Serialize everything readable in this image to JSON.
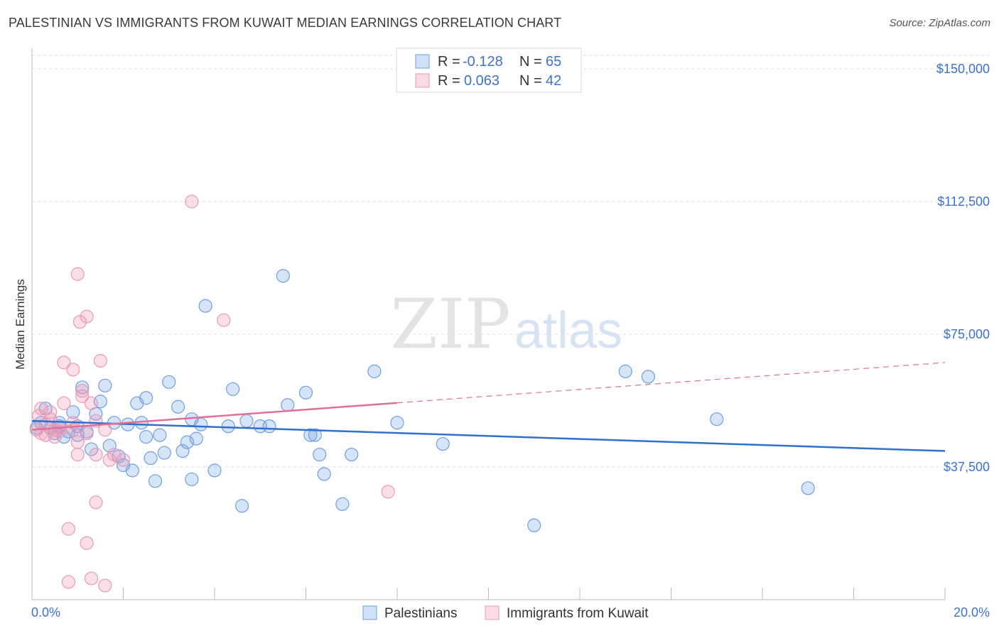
{
  "header": {
    "title": "PALESTINIAN VS IMMIGRANTS FROM KUWAIT MEDIAN EARNINGS CORRELATION CHART",
    "source": "Source: ZipAtlas.com"
  },
  "watermark": {
    "zip": "ZIP",
    "atlas": "atlas"
  },
  "colors": {
    "blue_fill": "rgba(120,165,230,0.30)",
    "blue_stroke": "#6f9fe0",
    "blue_line": "#2f6fce",
    "pink_fill": "rgba(240,150,180,0.30)",
    "pink_stroke": "#e89ab5",
    "pink_line": "#e07098",
    "axis_label": "#3d72c8",
    "grid": "#dcdcdc"
  },
  "chart_data": {
    "type": "scatter",
    "ylabel": "Median Earnings",
    "xlim": [
      0,
      20
    ],
    "ylim": [
      0,
      150000
    ],
    "y_ticks": [
      {
        "value": 37500,
        "label": "$37,500"
      },
      {
        "value": 75000,
        "label": "$75,000"
      },
      {
        "value": 112500,
        "label": "$112,500"
      },
      {
        "value": 150000,
        "label": "$150,000"
      }
    ],
    "x_tick_labels": {
      "min": "0.0%",
      "max": "20.0%"
    },
    "legend_stats": [
      {
        "r_label": "R =",
        "r_value": "-0.128",
        "n_label": "N =",
        "n_value": "65"
      },
      {
        "r_label": "R =",
        "r_value": "0.063",
        "n_label": "N =",
        "n_value": "42"
      }
    ],
    "series": [
      {
        "name": "Palestinians",
        "color": "blue",
        "trend": {
          "x": [
            0,
            20
          ],
          "y": [
            50500,
            42000
          ],
          "dashed_from": null
        },
        "points": [
          [
            0.1,
            48500
          ],
          [
            0.2,
            50000
          ],
          [
            0.3,
            54000
          ],
          [
            0.4,
            48500
          ],
          [
            0.5,
            47000
          ],
          [
            0.6,
            50000
          ],
          [
            0.7,
            46000
          ],
          [
            0.8,
            47500
          ],
          [
            0.9,
            53000
          ],
          [
            1.0,
            46500
          ],
          [
            1.1,
            60000
          ],
          [
            1.2,
            47500
          ],
          [
            1.3,
            42500
          ],
          [
            1.4,
            52500
          ],
          [
            1.5,
            56000
          ],
          [
            1.6,
            60500
          ],
          [
            1.7,
            43500
          ],
          [
            1.8,
            50000
          ],
          [
            1.9,
            40500
          ],
          [
            2.0,
            38000
          ],
          [
            2.2,
            36500
          ],
          [
            2.3,
            55500
          ],
          [
            2.4,
            50000
          ],
          [
            2.5,
            57000
          ],
          [
            2.6,
            40000
          ],
          [
            2.7,
            33500
          ],
          [
            2.8,
            46500
          ],
          [
            2.9,
            41500
          ],
          [
            3.0,
            61500
          ],
          [
            3.2,
            54500
          ],
          [
            3.3,
            42000
          ],
          [
            3.4,
            44500
          ],
          [
            3.5,
            51000
          ],
          [
            3.5,
            34000
          ],
          [
            3.6,
            45500
          ],
          [
            3.8,
            83000
          ],
          [
            4.0,
            36500
          ],
          [
            4.3,
            49000
          ],
          [
            4.4,
            59500
          ],
          [
            4.6,
            26500
          ],
          [
            4.7,
            50500
          ],
          [
            5.0,
            49000
          ],
          [
            5.2,
            49000
          ],
          [
            5.5,
            91500
          ],
          [
            5.6,
            55000
          ],
          [
            6.0,
            58500
          ],
          [
            6.1,
            46500
          ],
          [
            6.2,
            46500
          ],
          [
            6.3,
            41000
          ],
          [
            6.4,
            35500
          ],
          [
            6.8,
            27000
          ],
          [
            7.0,
            41000
          ],
          [
            7.5,
            64500
          ],
          [
            8.0,
            50000
          ],
          [
            9.0,
            44000
          ],
          [
            11.0,
            21000
          ],
          [
            13.0,
            64500
          ],
          [
            13.5,
            63000
          ],
          [
            15.0,
            51000
          ],
          [
            17.0,
            31500
          ],
          [
            1.0,
            49000
          ],
          [
            2.1,
            49500
          ],
          [
            3.7,
            49500
          ],
          [
            0.6,
            49000
          ],
          [
            2.5,
            46000
          ]
        ]
      },
      {
        "name": "Immigrants from Kuwait",
        "color": "pink",
        "trend": {
          "x": [
            0,
            20
          ],
          "y": [
            48000,
            67000
          ],
          "dashed_from": 8.0
        },
        "points": [
          [
            0.1,
            48000
          ],
          [
            0.15,
            52000
          ],
          [
            0.2,
            54000
          ],
          [
            0.3,
            49500
          ],
          [
            0.3,
            46500
          ],
          [
            0.4,
            53000
          ],
          [
            0.5,
            48000
          ],
          [
            0.5,
            46000
          ],
          [
            0.6,
            47500
          ],
          [
            0.7,
            55500
          ],
          [
            0.7,
            67000
          ],
          [
            0.8,
            5000
          ],
          [
            0.8,
            20000
          ],
          [
            0.9,
            65000
          ],
          [
            0.9,
            48000
          ],
          [
            1.0,
            44500
          ],
          [
            1.0,
            41000
          ],
          [
            1.0,
            92000
          ],
          [
            1.1,
            59000
          ],
          [
            1.1,
            57500
          ],
          [
            1.05,
            78500
          ],
          [
            1.2,
            80000
          ],
          [
            1.2,
            16000
          ],
          [
            1.3,
            55500
          ],
          [
            1.3,
            6000
          ],
          [
            1.4,
            50500
          ],
          [
            1.4,
            41000
          ],
          [
            1.4,
            27500
          ],
          [
            1.5,
            67500
          ],
          [
            1.6,
            48000
          ],
          [
            1.6,
            4000
          ],
          [
            1.7,
            39500
          ],
          [
            1.8,
            41000
          ],
          [
            2.0,
            39500
          ],
          [
            3.5,
            112500
          ],
          [
            4.2,
            79000
          ],
          [
            7.8,
            30500
          ],
          [
            0.2,
            47000
          ],
          [
            0.4,
            51000
          ],
          [
            0.6,
            48500
          ],
          [
            1.2,
            47000
          ],
          [
            0.9,
            50000
          ]
        ]
      }
    ]
  },
  "bottom_legend": [
    "Palestinians",
    "Immigrants from Kuwait"
  ]
}
